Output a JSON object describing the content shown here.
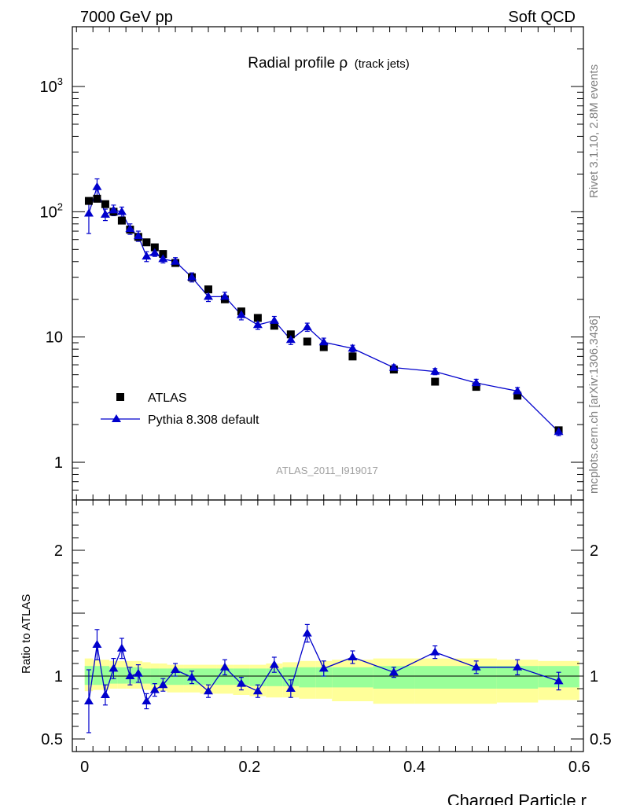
{
  "header": {
    "left": "7000 GeV pp",
    "right": "Soft QCD"
  },
  "side_labels": {
    "rivet": "Rivet 3.1.10,  2.8M events",
    "mcplots": "mcplots.cern.ch [arXiv:1306.3436]"
  },
  "watermark": "ATLAS_2011_I919017",
  "colors": {
    "data": "#000000",
    "mc": "#0000cc",
    "band_inner": "#99ff99",
    "band_outer": "#ffff99"
  },
  "chart_data": [
    {
      "type": "scatter",
      "title": "Radial profile ρ",
      "title_suffix": "(track jets)",
      "ylabel": "",
      "yscale": "log",
      "xlim": [
        -0.015,
        0.605
      ],
      "ylim": [
        0.5,
        3000
      ],
      "yticks": [
        {
          "value": 1,
          "label": "1"
        },
        {
          "value": 10,
          "label": "10"
        },
        {
          "value": 100,
          "label": "10",
          "sup": "2"
        },
        {
          "value": 1000,
          "label": "10",
          "sup": "3"
        }
      ],
      "legend": {
        "position": "lower-left",
        "entries": [
          "ATLAS",
          "Pythia 8.308 default"
        ]
      },
      "series": [
        {
          "name": "ATLAS",
          "marker": "square",
          "x": [
            0.005,
            0.015,
            0.025,
            0.035,
            0.045,
            0.055,
            0.065,
            0.075,
            0.085,
            0.095,
            0.11,
            0.13,
            0.15,
            0.17,
            0.19,
            0.21,
            0.23,
            0.25,
            0.27,
            0.29,
            0.325,
            0.375,
            0.425,
            0.475,
            0.525,
            0.575
          ],
          "y": [
            122,
            127,
            115,
            100,
            85,
            72,
            63,
            57,
            52,
            46,
            39,
            30,
            24,
            20,
            16,
            14.2,
            12.3,
            10.5,
            9.2,
            8.3,
            7.0,
            5.5,
            4.4,
            4.0,
            3.4,
            1.8
          ]
        },
        {
          "name": "Pythia 8.308 default",
          "marker": "triangle",
          "x": [
            0.005,
            0.015,
            0.025,
            0.035,
            0.045,
            0.055,
            0.065,
            0.075,
            0.085,
            0.095,
            0.11,
            0.13,
            0.15,
            0.17,
            0.19,
            0.21,
            0.23,
            0.25,
            0.27,
            0.29,
            0.325,
            0.375,
            0.425,
            0.475,
            0.525,
            0.575
          ],
          "y": [
            97,
            158,
            95,
            103,
            100,
            73,
            64,
            44,
            47,
            42,
            40,
            30,
            21,
            21,
            15,
            12.5,
            13.5,
            9.5,
            12,
            9.1,
            8.1,
            5.7,
            5.3,
            4.3,
            3.7,
            1.75
          ],
          "yerr": [
            30,
            25,
            10,
            10,
            9,
            7,
            6,
            4,
            3,
            3,
            3,
            2.5,
            1.8,
            1.8,
            1.3,
            1.0,
            1.1,
            0.8,
            0.9,
            0.7,
            0.5,
            0.3,
            0.3,
            0.3,
            0.25,
            0.12
          ]
        }
      ]
    },
    {
      "type": "line",
      "ylabel": "Ratio to ATLAS",
      "xlabel": "Charged Particle r",
      "xlim": [
        -0.015,
        0.605
      ],
      "ylim": [
        0.4,
        2.4
      ],
      "xticks": [
        0,
        0.2,
        0.4,
        0.6
      ],
      "xtick_labels": [
        "0",
        "0.2",
        "0.4",
        "0.6"
      ],
      "yticks": [
        0.5,
        1,
        2
      ],
      "ytick_labels": [
        "0.5",
        "1",
        "2"
      ],
      "reference_line": 1,
      "bands": [
        {
          "edges": [
            0,
            0.01,
            0.02,
            0.03,
            0.04,
            0.05,
            0.06,
            0.07,
            0.08,
            0.09,
            0.1,
            0.12,
            0.14,
            0.16,
            0.18,
            0.2,
            0.22,
            0.24,
            0.26,
            0.28,
            0.3,
            0.35,
            0.4,
            0.45,
            0.5,
            0.55,
            0.6
          ],
          "outer_lo": [
            0.88,
            0.89,
            0.89,
            0.9,
            0.9,
            0.9,
            0.9,
            0.89,
            0.88,
            0.88,
            0.87,
            0.87,
            0.86,
            0.86,
            0.85,
            0.84,
            0.83,
            0.83,
            0.82,
            0.82,
            0.8,
            0.78,
            0.78,
            0.78,
            0.79,
            0.81
          ],
          "outer_hi": [
            1.14,
            1.13,
            1.13,
            1.12,
            1.12,
            1.12,
            1.12,
            1.11,
            1.1,
            1.1,
            1.09,
            1.09,
            1.09,
            1.09,
            1.09,
            1.09,
            1.1,
            1.11,
            1.12,
            1.12,
            1.13,
            1.14,
            1.14,
            1.14,
            1.13,
            1.12
          ],
          "inner_lo": [
            0.93,
            0.93,
            0.93,
            0.94,
            0.94,
            0.94,
            0.94,
            0.94,
            0.93,
            0.93,
            0.93,
            0.93,
            0.93,
            0.93,
            0.93,
            0.92,
            0.92,
            0.92,
            0.91,
            0.91,
            0.91,
            0.9,
            0.9,
            0.9,
            0.9,
            0.91
          ],
          "inner_hi": [
            1.08,
            1.08,
            1.08,
            1.07,
            1.07,
            1.07,
            1.07,
            1.06,
            1.06,
            1.06,
            1.06,
            1.06,
            1.06,
            1.06,
            1.06,
            1.06,
            1.06,
            1.07,
            1.07,
            1.07,
            1.07,
            1.08,
            1.08,
            1.08,
            1.08,
            1.08
          ]
        }
      ],
      "series": [
        {
          "name": "Pythia 8.308 default",
          "x": [
            0.005,
            0.015,
            0.025,
            0.035,
            0.045,
            0.055,
            0.065,
            0.075,
            0.085,
            0.095,
            0.11,
            0.13,
            0.15,
            0.17,
            0.19,
            0.21,
            0.23,
            0.25,
            0.27,
            0.29,
            0.325,
            0.375,
            0.425,
            0.475,
            0.525,
            0.575
          ],
          "y": [
            0.8,
            1.25,
            0.85,
            1.06,
            1.22,
            1.0,
            1.02,
            0.8,
            0.89,
            0.93,
            1.05,
            0.99,
            0.88,
            1.07,
            0.94,
            0.88,
            1.09,
            0.9,
            1.34,
            1.06,
            1.15,
            1.03,
            1.19,
            1.07,
            1.07,
            0.96
          ],
          "yerr": [
            0.25,
            0.12,
            0.08,
            0.08,
            0.08,
            0.07,
            0.07,
            0.06,
            0.05,
            0.05,
            0.05,
            0.05,
            0.05,
            0.06,
            0.05,
            0.05,
            0.06,
            0.07,
            0.07,
            0.06,
            0.05,
            0.04,
            0.05,
            0.05,
            0.06,
            0.07
          ]
        }
      ]
    }
  ]
}
